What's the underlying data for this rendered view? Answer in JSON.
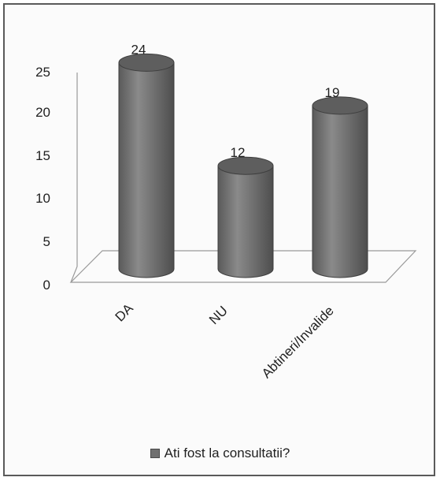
{
  "chart_data": {
    "type": "bar",
    "style": "3d-cylinder",
    "categories": [
      "DA",
      "NU",
      "Abtineri/Invalide"
    ],
    "series": [
      {
        "name": "Ati fost la consultatii?",
        "values": [
          24,
          12,
          19
        ],
        "color": "#6e6e6e"
      }
    ],
    "data_labels": [
      "24",
      "12",
      "19"
    ],
    "y_ticks": [
      "0",
      "5",
      "10",
      "15",
      "20",
      "25"
    ],
    "ylim": [
      0,
      25
    ],
    "grid": false,
    "legend_position": "bottom",
    "legend_swatch_color": "#707070",
    "title": "",
    "xlabel": "",
    "ylabel": ""
  }
}
